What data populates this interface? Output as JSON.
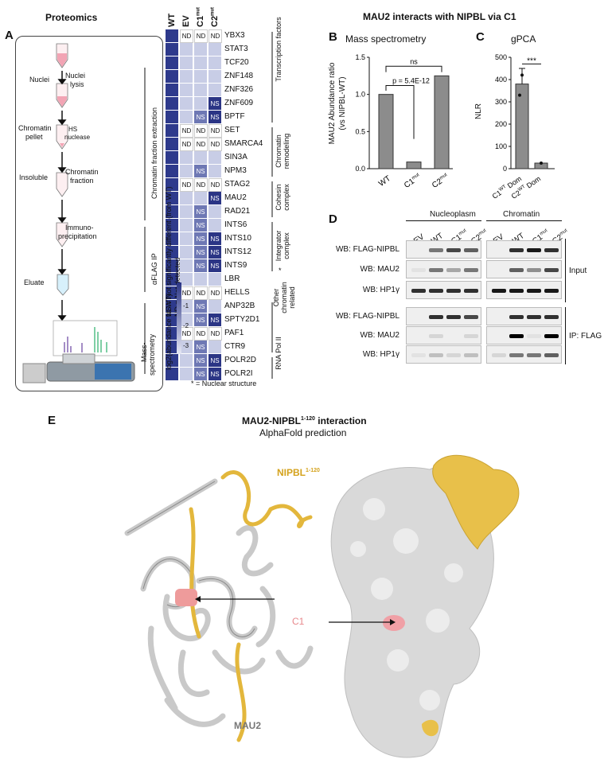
{
  "panelA": {
    "heading": "Proteomics",
    "letter": "A",
    "steps": {
      "nuclei": "Nuclei",
      "lysis1": "Nuclei",
      "lysis2": "lysis",
      "chrom_pellet1": "Chromatin",
      "chrom_pellet2": "pellet",
      "hs1": "HS",
      "hs2": "nuclease",
      "insoluble": "Insoluble",
      "chrom_fraction1": "Chromatin",
      "chrom_fraction2": "fraction",
      "ip1": "Immuno-",
      "ip2": "precipitation",
      "eluate": "Eluate",
      "side_extraction": "Chromatin fraction extraction",
      "side_ip": "αFLAG IP",
      "side_ms1": "Mass-",
      "side_ms2": "spectrometry"
    }
  },
  "heatmap": {
    "columns": [
      "WT",
      "EV",
      "C1",
      "C2"
    ],
    "col_sup": [
      "",
      "",
      "mut",
      "mut"
    ],
    "genes": [
      "YBX3",
      "STAT3",
      "TCF20",
      "ZNF148",
      "ZNF326",
      "ZNF609",
      "BPTF",
      "SET",
      "SMARCA4",
      "SIN3A",
      "NPM3",
      "STAG2",
      "MAU2",
      "RAD21",
      "INTS6",
      "INTS10",
      "INTS12",
      "INTS9",
      "LBR",
      "HELLS",
      "ANP32B",
      "SPTY2D1",
      "PAF1",
      "CTR9",
      "POLR2D",
      "POLR2I"
    ],
    "cells": [
      [
        "",
        "ND",
        "ND",
        "ND"
      ],
      [
        "",
        "",
        "",
        ""
      ],
      [
        "",
        "",
        "",
        ""
      ],
      [
        "",
        "",
        "",
        ""
      ],
      [
        "",
        "",
        "",
        ""
      ],
      [
        "",
        "",
        "",
        "NS"
      ],
      [
        "",
        "",
        "NS",
        "NS"
      ],
      [
        "",
        "ND",
        "ND",
        "ND"
      ],
      [
        "",
        "ND",
        "ND",
        "ND"
      ],
      [
        "",
        "",
        "",
        ""
      ],
      [
        "",
        "",
        "NS",
        ""
      ],
      [
        "",
        "ND",
        "ND",
        "ND"
      ],
      [
        "",
        "",
        "",
        "NS"
      ],
      [
        "",
        "",
        "NS",
        ""
      ],
      [
        "",
        "",
        "NS",
        ""
      ],
      [
        "",
        "",
        "NS",
        "NS"
      ],
      [
        "",
        "",
        "NS",
        "NS"
      ],
      [
        "",
        "",
        "NS",
        "NS"
      ],
      [
        "",
        "",
        "",
        ""
      ],
      [
        "",
        "ND",
        "ND",
        "ND"
      ],
      [
        "",
        "",
        "NS",
        ""
      ],
      [
        "",
        "",
        "NS",
        "NS"
      ],
      [
        "",
        "ND",
        "ND",
        "ND"
      ],
      [
        "",
        "",
        "NS",
        ""
      ],
      [
        "",
        "",
        "NS",
        "NS"
      ],
      [
        "",
        "",
        "NS",
        "NS"
      ]
    ],
    "groups": [
      "Transcription factors",
      "Chromatin remodeling",
      "Cohesin complex",
      "Integrator complex",
      "*",
      "Other chromatin related",
      "RNA Pol II"
    ],
    "legend_ns": "NS = Not significantly different (from WT)",
    "legend_nd": "ND = Not detected",
    "scale_label": "log2(abundance vs WT)",
    "scale_ticks": [
      "-1",
      "-2",
      "-3"
    ],
    "footnote": "* = Nuclear structure",
    "colors": {
      "wt": "#2e3a8c",
      "dark": "#2b3585",
      "mid": "#6e78b4",
      "light": "#c8cde6",
      "pale": "#dfe2f1"
    }
  },
  "panelB": {
    "letter": "B",
    "title": "Mass spectrometry",
    "ylabel1": "MAU2 Abundance ratio",
    "ylabel2": "(vs NIPBL-WT)",
    "pval": "p = 5.4E-12",
    "ns": "ns",
    "chart_data": {
      "type": "bar",
      "categories": [
        "WT",
        "C1mut",
        "C2mut"
      ],
      "values": [
        1.0,
        0.09,
        1.25
      ],
      "ylim": [
        0,
        1.5
      ],
      "yticks": [
        "0.0",
        "0.5",
        "1.0",
        "1.5"
      ]
    }
  },
  "panelC": {
    "letter": "C",
    "title": "gPCA",
    "ylabel": "NLR",
    "sig": "***",
    "chart_data": {
      "type": "bar",
      "categories": [
        "C1WT Dom",
        "C2WT Dom"
      ],
      "values": [
        380,
        25
      ],
      "ylim": [
        0,
        500
      ],
      "yticks": [
        "0",
        "100",
        "200",
        "300",
        "400",
        "500"
      ]
    }
  },
  "main_title": "MAU2 interacts with NIPBL via C1",
  "panelD": {
    "letter": "D",
    "group1": "Nucleoplasm",
    "group2": "Chromatin",
    "lanes": [
      "EV",
      "WT",
      "C1",
      "C2",
      "EV",
      "WT",
      "C1",
      "C2"
    ],
    "lane_sup": [
      "",
      "",
      "mut",
      "mut",
      "",
      "",
      "mut",
      "mut"
    ],
    "rows": [
      "WB: FLAG-NIPBL",
      "WB: MAU2",
      "WB: HP1γ",
      "WB: FLAG-NIPBL",
      "WB: MAU2",
      "WB: HP1γ"
    ],
    "input": "Input",
    "ip": "IP: FLAG"
  },
  "panelE": {
    "letter": "E",
    "title": "MAU2-NIPBL",
    "title_sup": "1-120",
    "title_suffix": " interaction",
    "subtitle": "AlphaFold prediction",
    "nipbl": "NIPBL",
    "nipbl_sup": "1-120",
    "c1": "C1",
    "mau2": "MAU2"
  }
}
